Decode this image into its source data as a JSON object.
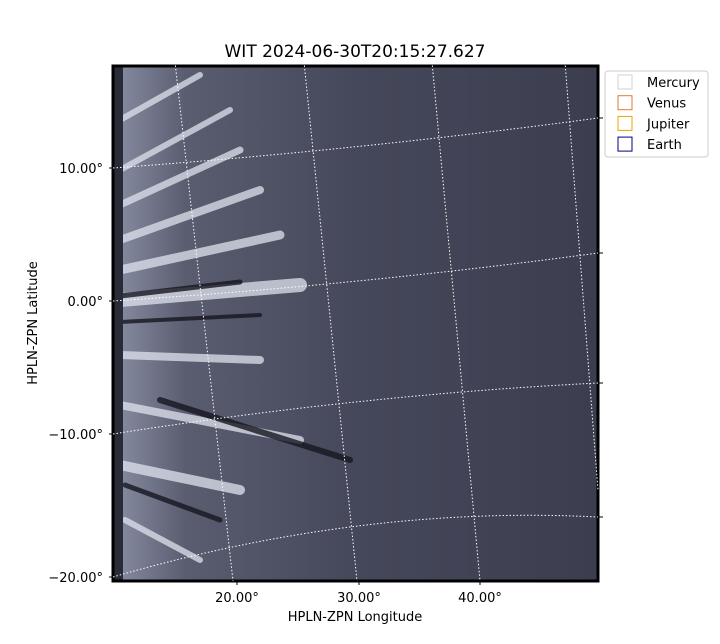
{
  "title": "WIT 2024-06-30T20:15:27.627",
  "x_axis": {
    "label": "HPLN-ZPN Longitude",
    "ticks": [
      "20.00°",
      "30.00°",
      "40.00°"
    ]
  },
  "y_axis": {
    "label": "HPLN-ZPN Latitude",
    "ticks": [
      "10.00°",
      "0.00°",
      "−10.00°",
      "−20.00°"
    ]
  },
  "legend": [
    {
      "name": "Mercury",
      "color": "#d0d0d0"
    },
    {
      "name": "Venus",
      "color": "#e07a30"
    },
    {
      "name": "Jupiter",
      "color": "#e0a800"
    },
    {
      "name": "Earth",
      "color": "#000080"
    }
  ]
}
